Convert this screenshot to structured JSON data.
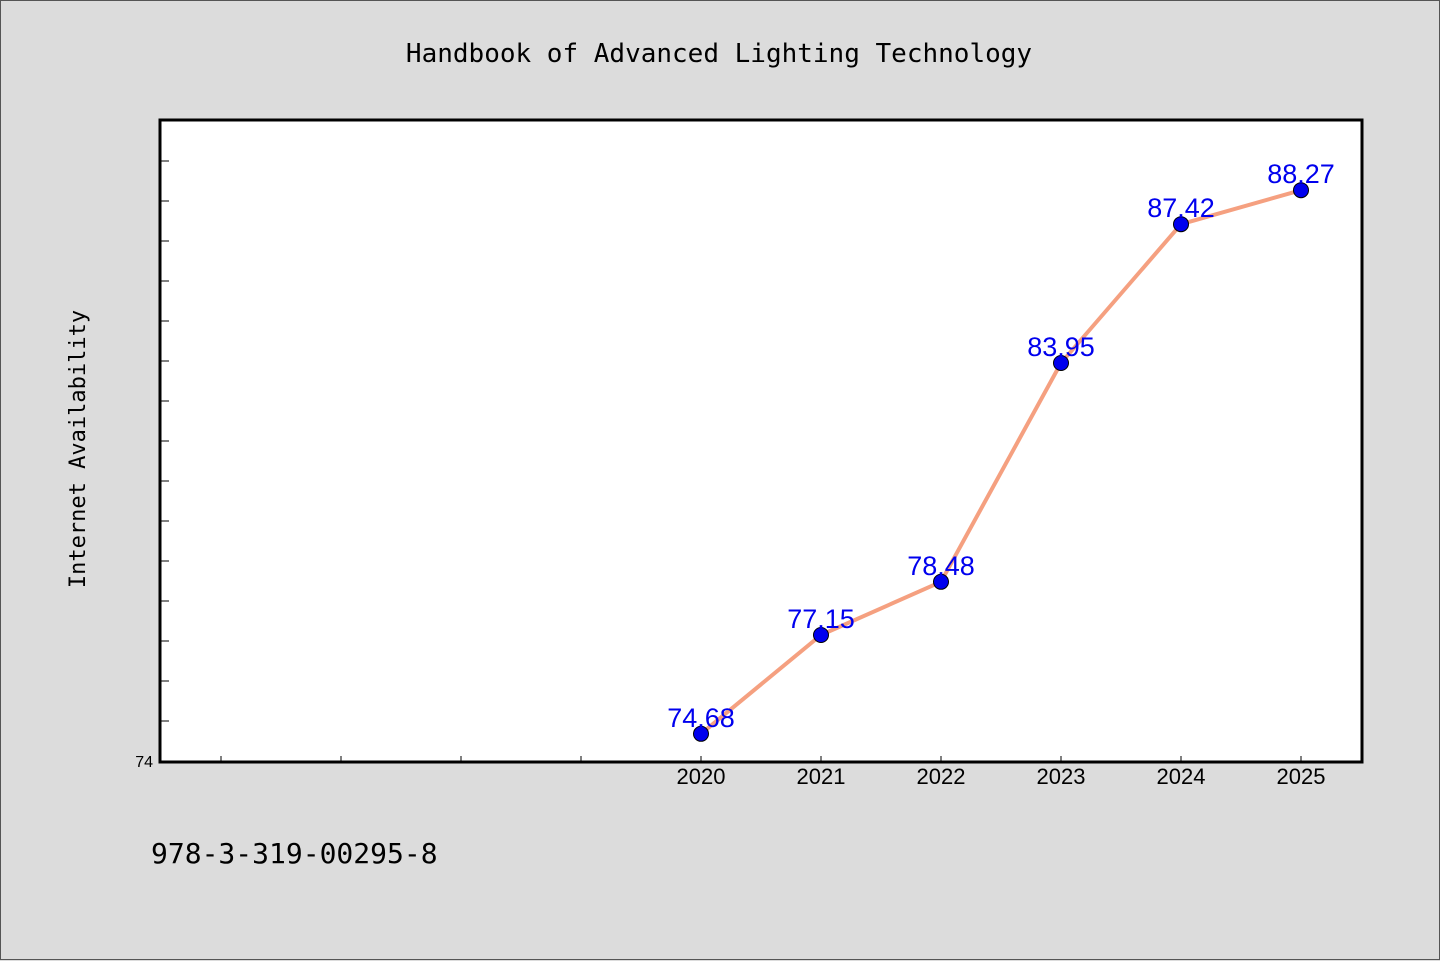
{
  "chart_data": {
    "type": "line",
    "title": "Handbook of Advanced Lighting Technology",
    "xlabel": "",
    "ylabel": "Internet Availability",
    "footer": "978-3-319-00295-8",
    "x_range": [
      2015.5,
      2025.5
    ],
    "x": [
      2020,
      2021,
      2022,
      2023,
      2024,
      2025
    ],
    "x_tick_labels": [
      "2020",
      "2021",
      "2022",
      "2023",
      "2024",
      "2025"
    ],
    "y_range": [
      74,
      90
    ],
    "y_tick_labels": [
      "74"
    ],
    "series": [
      {
        "values": [
          74.68,
          77.15,
          78.48,
          83.95,
          87.42,
          88.27
        ]
      }
    ],
    "data_labels": [
      "74.68",
      "77.15",
      "78.48",
      "83.95",
      "87.42",
      "88.27"
    ],
    "line_color": "#f5a080",
    "marker_color": "#0000ee",
    "label_color": "#0000ee",
    "grid": false,
    "legend": "none"
  }
}
